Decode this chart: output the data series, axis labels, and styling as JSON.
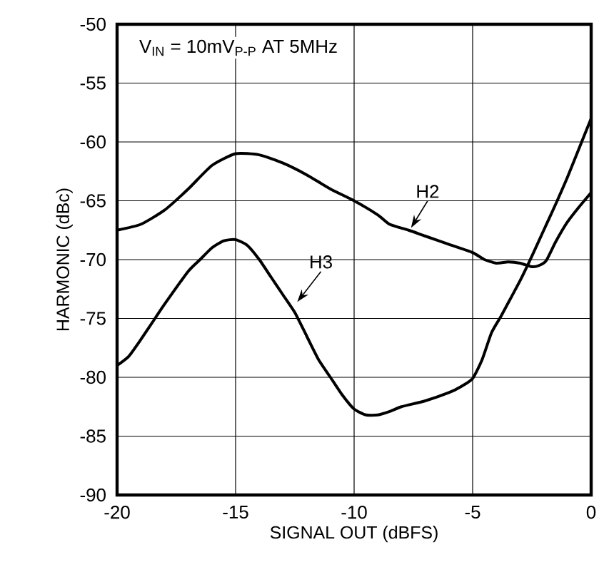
{
  "chart_data": {
    "type": "line",
    "xlabel": "SIGNAL OUT (dBFS)",
    "ylabel": "HARMONIC (dBc)",
    "annotations": [
      "V$_{IN}$ = 10mV$_{P-P}$ AT 5MHz"
    ],
    "xlim": [
      -20,
      0
    ],
    "xticks": [
      -20,
      -15,
      -10,
      -5,
      0
    ],
    "ylim": [
      -90,
      -50
    ],
    "yticks": [
      -90,
      -85,
      -80,
      -75,
      -70,
      -65,
      -60,
      -55,
      -50
    ],
    "grid": true,
    "legend": false,
    "marker": "none",
    "line_style": "solid",
    "series": [
      {
        "name": "H2",
        "color": "#000000",
        "x": [
          -20,
          -19,
          -18,
          -17,
          -16,
          -15,
          -14,
          -13,
          -12,
          -11,
          -10,
          -9,
          -8.5,
          -7.7,
          -7,
          -6,
          -5,
          -4.5,
          -4,
          -3.5,
          -3,
          -2.5,
          -2.2,
          -1.9,
          -1.5,
          -1,
          -0.5,
          0
        ],
        "values": [
          -67.5,
          -67,
          -65.8,
          -64,
          -62,
          -61,
          -61.1,
          -61.8,
          -62.8,
          -64,
          -65,
          -66.2,
          -67,
          -67.5,
          -68,
          -68.7,
          -69.4,
          -70,
          -70.3,
          -70.2,
          -70.3,
          -70.6,
          -70.5,
          -70.1,
          -68.5,
          -66.8,
          -65.5,
          -64.3
        ]
      },
      {
        "name": "H3",
        "color": "#000000",
        "x": [
          -20,
          -19.5,
          -19,
          -18.4,
          -18,
          -17,
          -16.5,
          -16,
          -15.5,
          -15,
          -14.5,
          -14,
          -13.5,
          -13,
          -12.5,
          -12,
          -11.5,
          -11,
          -10.5,
          -10,
          -9.5,
          -9,
          -8.5,
          -8,
          -7,
          -6,
          -5.5,
          -5,
          -4.6,
          -4.2,
          -3.8,
          -3.4,
          -3,
          -2.5,
          -2,
          -1.5,
          -1,
          -0.5,
          0
        ],
        "values": [
          -79,
          -78.2,
          -76.8,
          -75,
          -73.8,
          -71,
          -70,
          -69,
          -68.4,
          -68.3,
          -68.8,
          -70,
          -71.5,
          -73,
          -74.5,
          -76.5,
          -78.5,
          -80,
          -81.5,
          -82.7,
          -83.2,
          -83.2,
          -82.9,
          -82.5,
          -82,
          -81.3,
          -80.8,
          -80.1,
          -78.5,
          -76.2,
          -74.8,
          -73.3,
          -71.8,
          -69.7,
          -67.5,
          -65.3,
          -63,
          -60.5,
          -58
        ]
      }
    ]
  }
}
